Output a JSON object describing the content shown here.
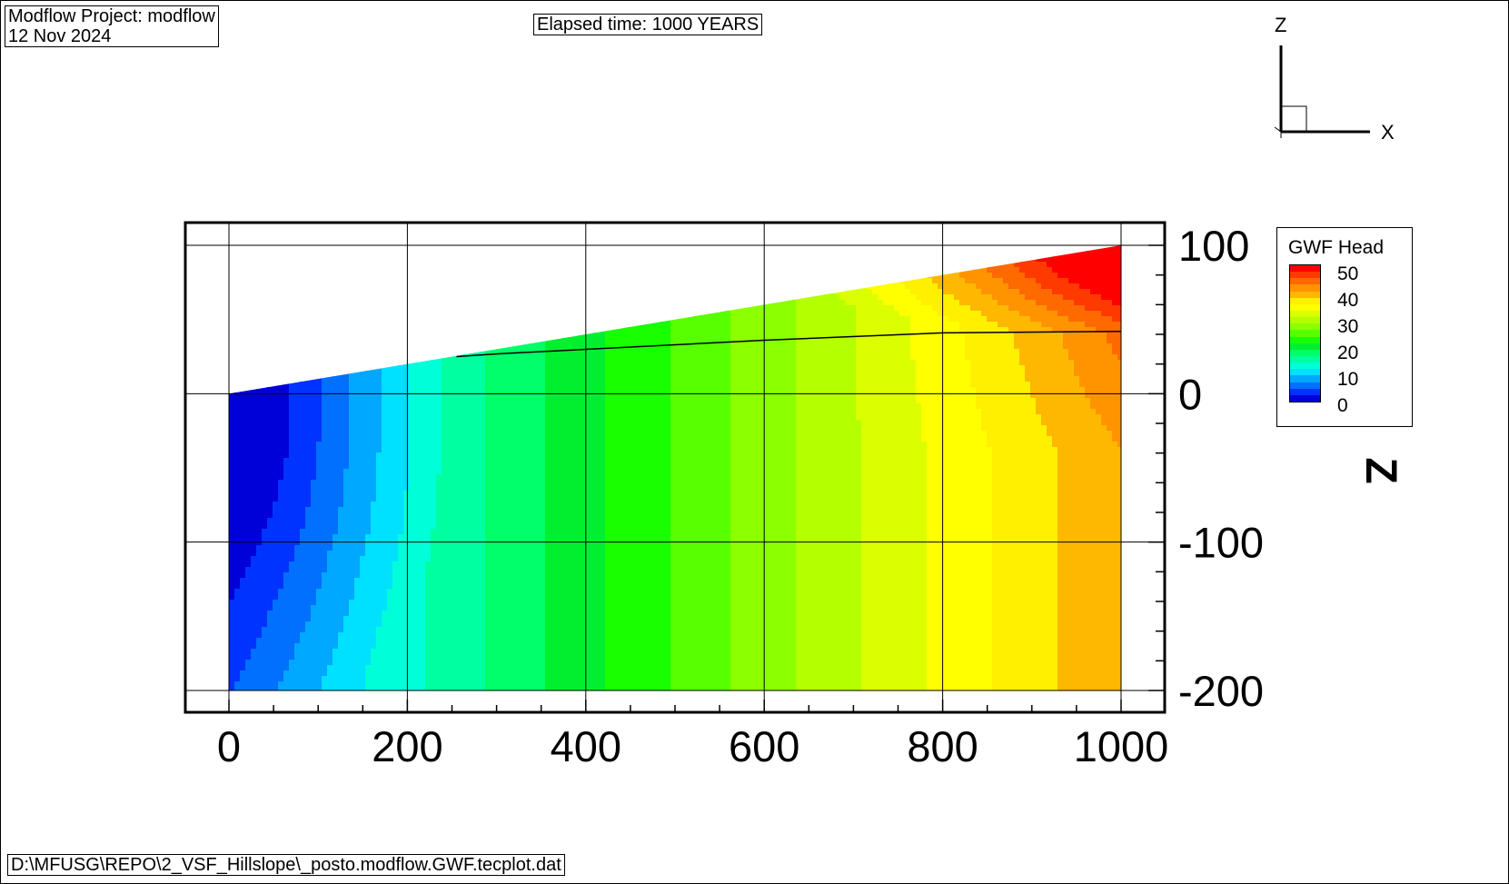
{
  "header": {
    "project_line": "Modflow Project: modflow",
    "date_line": "12 Nov 2024",
    "elapsed_time": "Elapsed time: 1000 YEARS"
  },
  "footer": {
    "file_path": "D:\\MFUSG\\REPO\\2_VSF_Hillslope\\_posto.modflow.GWF.tecplot.dat"
  },
  "axes_indicator": {
    "z_label": "Z",
    "x_label": "X"
  },
  "colors": {
    "contour_levels": [
      "#0000d8",
      "#0033ff",
      "#0070ff",
      "#00a8ff",
      "#00e0ff",
      "#00ffd8",
      "#00ffa0",
      "#00ff68",
      "#00f030",
      "#18ff00",
      "#58ff00",
      "#8cff00",
      "#b4ff00",
      "#dcff00",
      "#ffff00",
      "#fff000",
      "#ffb800",
      "#ff9400",
      "#ff6a00",
      "#ff3a00",
      "#ff0000"
    ]
  },
  "chart_data": {
    "type": "contour",
    "title": "GWF Head",
    "xlabel": "",
    "ylabel": "Z",
    "xlim": [
      -25,
      1025
    ],
    "ylim": [
      -215,
      115
    ],
    "x_ticks": [
      0,
      200,
      400,
      600,
      800,
      1000
    ],
    "x_tick_labels": [
      "0",
      "200",
      "400",
      "600",
      "800",
      "1000"
    ],
    "y_ticks": [
      100,
      0,
      -100,
      -200
    ],
    "y_tick_labels": [
      "100",
      "0",
      "-100",
      "-200"
    ],
    "grid": true,
    "domain": {
      "x_min": 0,
      "x_max": 1000,
      "bottom_z": -200,
      "top_z_left": 0,
      "top_z_right": 100
    },
    "water_table": [
      [
        255,
        25
      ],
      [
        305,
        27
      ],
      [
        600,
        36
      ],
      [
        800,
        41
      ],
      [
        1000,
        42
      ]
    ],
    "legend": {
      "title": "GWF Head",
      "placement": "right",
      "labels": [
        "50",
        "40",
        "30",
        "20",
        "10",
        "0"
      ],
      "label_values": [
        50,
        40,
        30,
        20,
        10,
        0
      ],
      "range": [
        0,
        52
      ]
    },
    "head_field_samples": [
      {
        "x": 0,
        "z": -200,
        "head": 8
      },
      {
        "x": 100,
        "z": -200,
        "head": 12
      },
      {
        "x": 200,
        "z": -200,
        "head": 18
      },
      {
        "x": 300,
        "z": -200,
        "head": 22
      },
      {
        "x": 400,
        "z": -200,
        "head": 27
      },
      {
        "x": 500,
        "z": -200,
        "head": 31
      },
      {
        "x": 600,
        "z": -200,
        "head": 35
      },
      {
        "x": 700,
        "z": -200,
        "head": 39
      },
      {
        "x": 800,
        "z": -200,
        "head": 41
      },
      {
        "x": 1000,
        "z": -200,
        "head": 42
      },
      {
        "x": 0,
        "z": 0,
        "head": 0
      },
      {
        "x": 1000,
        "z": 100,
        "head": 52
      }
    ]
  }
}
